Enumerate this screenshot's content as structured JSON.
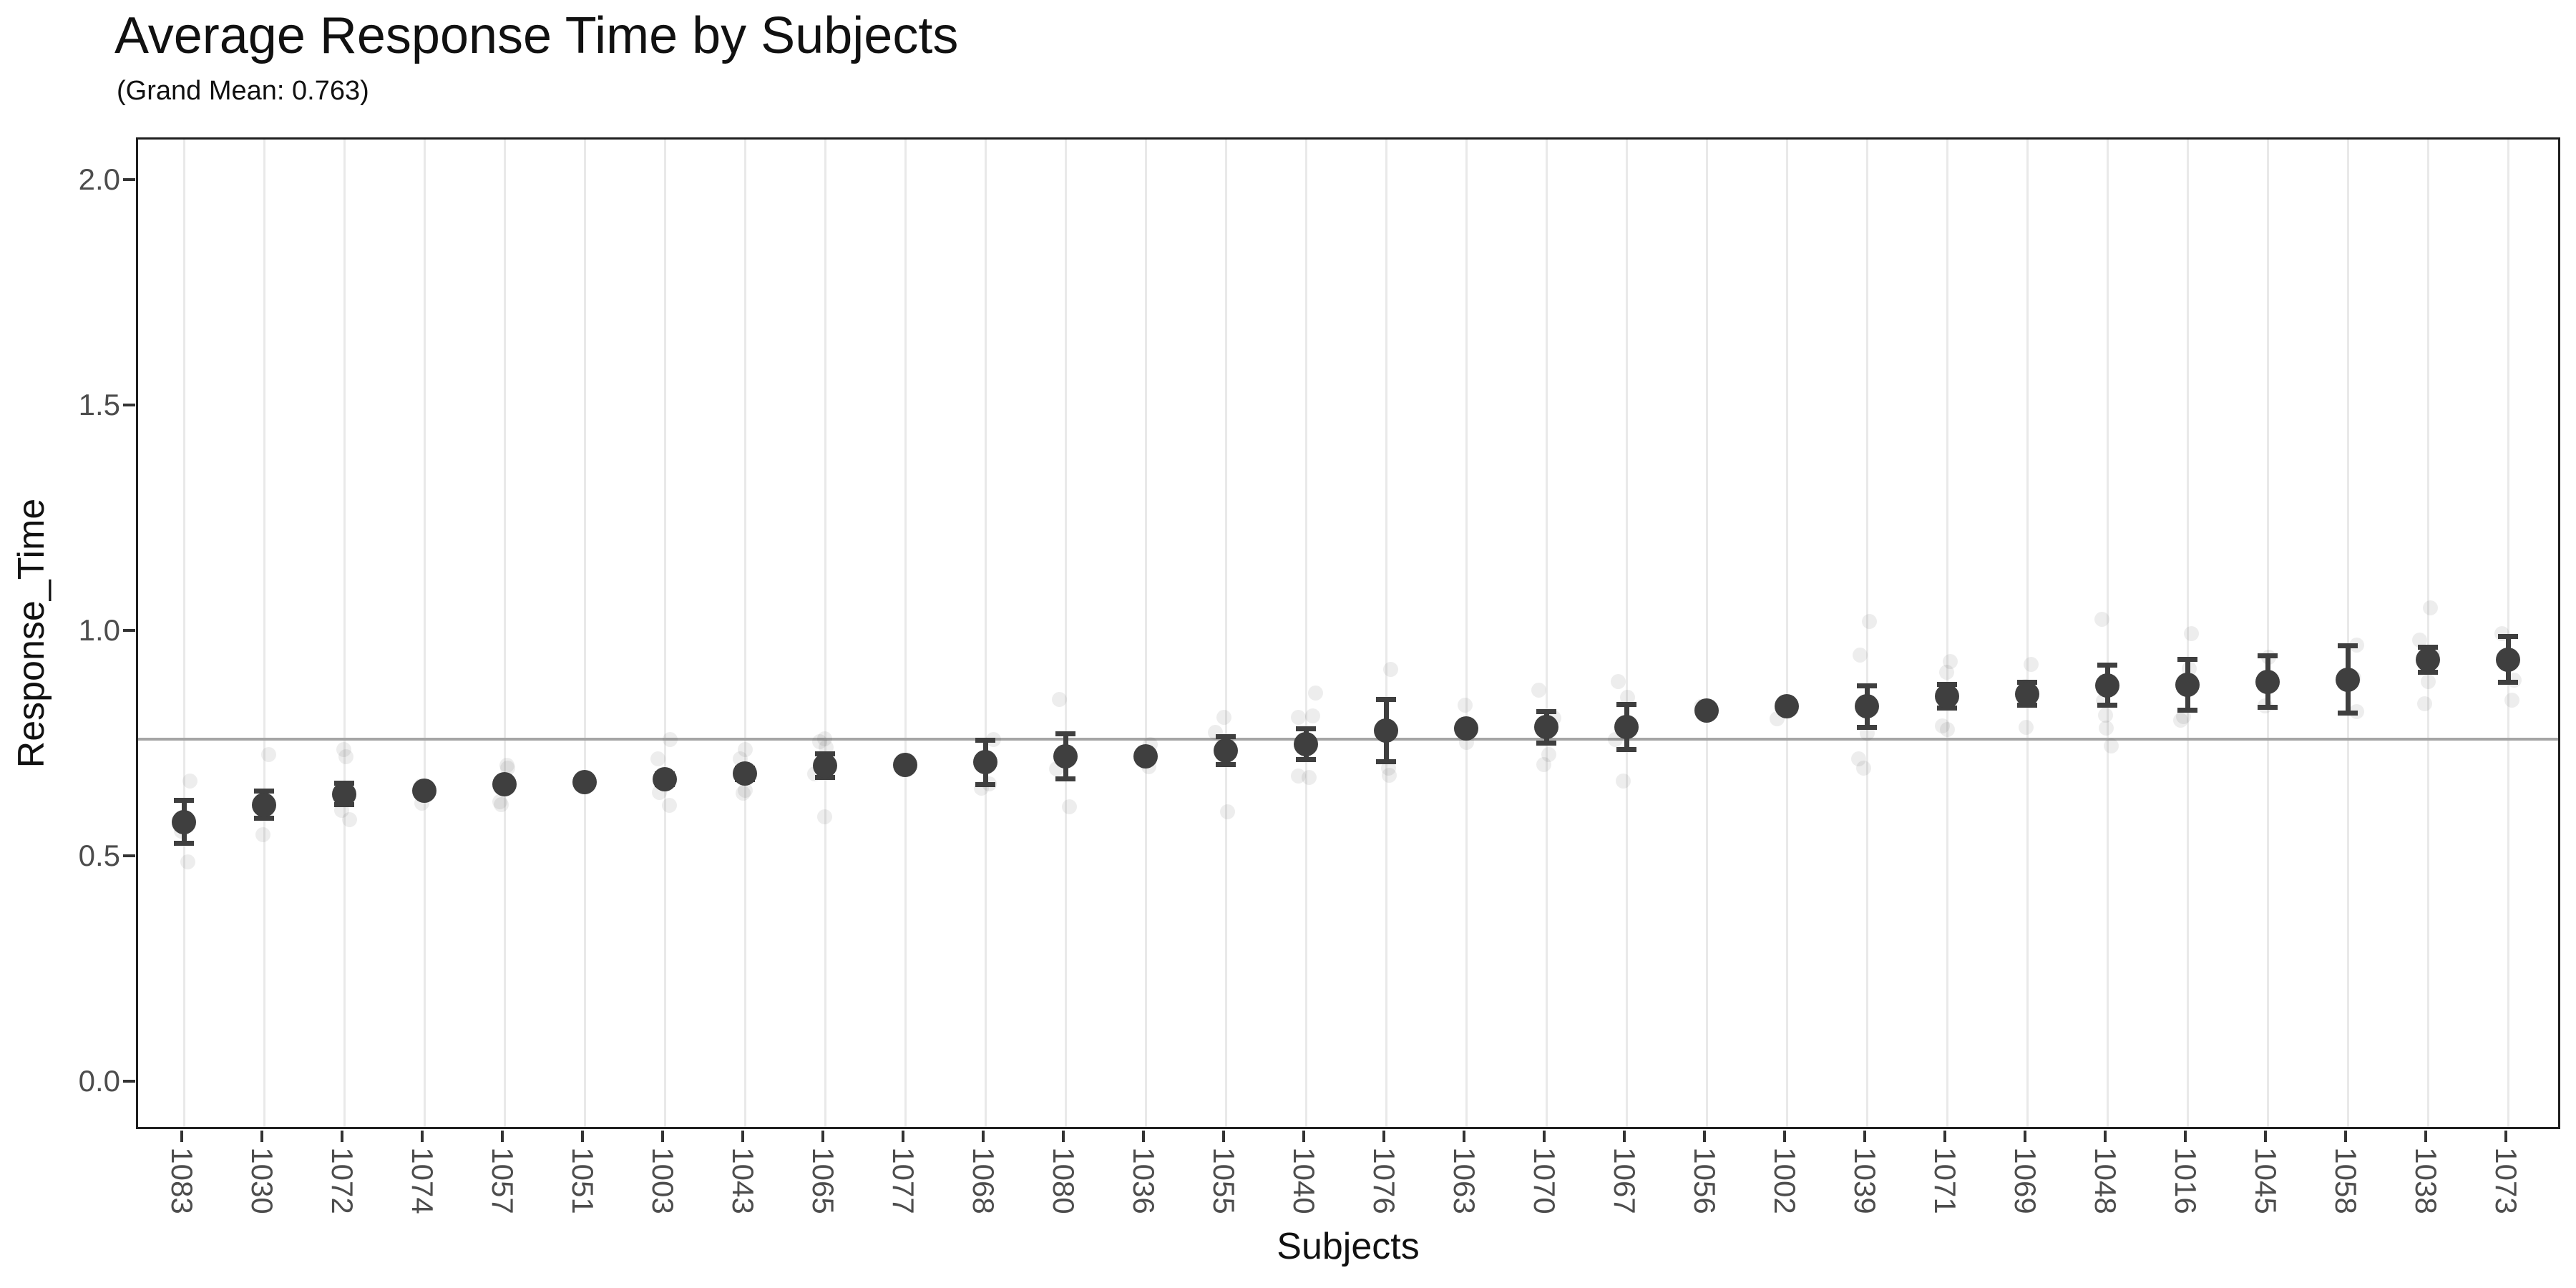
{
  "title": "Average Response Time by Subjects",
  "subtitle": "(Grand Mean: 0.763)",
  "colors": {
    "mean_point": "#3f3f3f",
    "error_bar": "#3f3f3f",
    "raw_point": "#505050",
    "raw_point_opacity": 0.1,
    "grand_mean_line": "#a5a5a5",
    "gridline": "#e9e9e9",
    "panel_border": "#1f1f1f",
    "tick_text": "#4d4d4d",
    "tick_mark": "#333333"
  },
  "chart_data": {
    "type": "scatter",
    "title": "Average Response Time by Subjects",
    "subtitle": "(Grand Mean: 0.763)",
    "xlabel": "Subjects",
    "ylabel": "Response_Time",
    "ylim": [
      0,
      2
    ],
    "yticks": [
      0.0,
      0.5,
      1.0,
      1.5,
      2.0
    ],
    "ytick_labels": [
      "0.0",
      "0.5",
      "1.0",
      "1.5",
      "2.0"
    ],
    "grand_mean": 0.763,
    "grid": "vertical-only",
    "legend": "none",
    "series_note": "mean = subject average (dark point), se = half-length of error bar, raw = [x-jitter-px, value] individual observations (faint points)",
    "subjects": [
      {
        "id": "1083",
        "mean": 0.58,
        "se": 0.048,
        "raw": [
          [
            8,
            0.67
          ],
          [
            2,
            0.585
          ],
          [
            -4,
            0.56
          ],
          [
            5,
            0.492
          ]
        ]
      },
      {
        "id": "1030",
        "mean": 0.618,
        "se": 0.03,
        "raw": [
          [
            6,
            0.729
          ],
          [
            -3,
            0.62
          ],
          [
            3,
            0.604
          ],
          [
            -2,
            0.551
          ]
        ]
      },
      {
        "id": "1072",
        "mean": 0.642,
        "se": 0.024,
        "raw": [
          [
            -1,
            0.741
          ],
          [
            2,
            0.725
          ],
          [
            -4,
            0.606
          ],
          [
            7,
            0.585
          ]
        ]
      },
      {
        "id": "1074",
        "mean": 0.649,
        "se": 0.008,
        "raw": [
          [
            -5,
            0.66
          ],
          [
            3,
            0.652
          ],
          [
            -4,
            0.622
          ]
        ]
      },
      {
        "id": "1057",
        "mean": 0.663,
        "se": 0.009,
        "raw": [
          [
            3,
            0.706
          ],
          [
            4,
            0.7
          ],
          [
            -7,
            0.625
          ],
          [
            -5,
            0.618
          ]
        ]
      },
      {
        "id": "1051",
        "mean": 0.668,
        "se": 0.007,
        "raw": [
          [
            2,
            0.676
          ],
          [
            -3,
            0.668
          ],
          [
            1,
            0.66
          ]
        ]
      },
      {
        "id": "1003",
        "mean": 0.674,
        "se": 0.012,
        "raw": [
          [
            7,
            0.763
          ],
          [
            -10,
            0.72
          ],
          [
            -8,
            0.645
          ],
          [
            6,
            0.616
          ]
        ]
      },
      {
        "id": "1043",
        "mean": 0.687,
        "se": 0.013,
        "raw": [
          [
            0,
            0.74
          ],
          [
            -7,
            0.72
          ],
          [
            0,
            0.65
          ],
          [
            -3,
            0.643
          ]
        ]
      },
      {
        "id": "1065",
        "mean": 0.705,
        "se": 0.026,
        "raw": [
          [
            -1,
            0.764
          ],
          [
            -8,
            0.758
          ],
          [
            1,
            0.746
          ],
          [
            -15,
            0.687
          ],
          [
            -1,
            0.592
          ]
        ]
      },
      {
        "id": "1077",
        "mean": 0.706,
        "se": 0.008,
        "raw": [
          [
            2,
            0.712
          ],
          [
            -2,
            0.706
          ],
          [
            1,
            0.7
          ]
        ]
      },
      {
        "id": "1068",
        "mean": 0.712,
        "se": 0.049,
        "raw": [
          [
            11,
            0.763
          ],
          [
            3,
            0.72
          ],
          [
            5,
            0.664
          ],
          [
            -6,
            0.655
          ]
        ]
      },
      {
        "id": "1080",
        "mean": 0.725,
        "se": 0.05,
        "raw": [
          [
            -9,
            0.852
          ],
          [
            -13,
            0.697
          ],
          [
            5,
            0.613
          ]
        ]
      },
      {
        "id": "1036",
        "mean": 0.725,
        "se": 0.006,
        "raw": [
          [
            6,
            0.751
          ],
          [
            -2,
            0.726
          ],
          [
            4,
            0.703
          ]
        ]
      },
      {
        "id": "1055",
        "mean": 0.738,
        "se": 0.031,
        "raw": [
          [
            -3,
            0.812
          ],
          [
            -15,
            0.778
          ],
          [
            2,
            0.74
          ],
          [
            2,
            0.602
          ]
        ]
      },
      {
        "id": "1040",
        "mean": 0.753,
        "se": 0.034,
        "raw": [
          [
            13,
            0.866
          ],
          [
            9,
            0.815
          ],
          [
            -11,
            0.812
          ],
          [
            -11,
            0.682
          ],
          [
            4,
            0.679
          ]
        ]
      },
      {
        "id": "1076",
        "mean": 0.783,
        "se": 0.069,
        "raw": [
          [
            6,
            0.919
          ],
          [
            -2,
            0.78
          ],
          [
            3,
            0.7
          ],
          [
            4,
            0.684
          ]
        ]
      },
      {
        "id": "1063",
        "mean": 0.787,
        "se": 0.007,
        "raw": [
          [
            -2,
            0.839
          ],
          [
            0,
            0.79
          ],
          [
            0,
            0.757
          ]
        ]
      },
      {
        "id": "1070",
        "mean": 0.79,
        "se": 0.035,
        "raw": [
          [
            -11,
            0.872
          ],
          [
            10,
            0.81
          ],
          [
            3,
            0.73
          ],
          [
            -4,
            0.707
          ]
        ]
      },
      {
        "id": "1067",
        "mean": 0.791,
        "se": 0.05,
        "raw": [
          [
            -12,
            0.891
          ],
          [
            1,
            0.857
          ],
          [
            -16,
            0.763
          ],
          [
            -5,
            0.67
          ]
        ]
      },
      {
        "id": "1056",
        "mean": 0.827,
        "se": 0.006,
        "raw": [
          [
            -8,
            0.836
          ],
          [
            2,
            0.83
          ],
          [
            -2,
            0.82
          ]
        ]
      },
      {
        "id": "1002",
        "mean": 0.836,
        "se": 0.006,
        "raw": [
          [
            2,
            0.84
          ],
          [
            1,
            0.832
          ],
          [
            -14,
            0.809
          ]
        ]
      },
      {
        "id": "1039",
        "mean": 0.836,
        "se": 0.046,
        "raw": [
          [
            3,
            1.025
          ],
          [
            -10,
            0.95
          ],
          [
            0,
            0.777
          ],
          [
            -12,
            0.72
          ],
          [
            -5,
            0.7
          ]
        ]
      },
      {
        "id": "1071",
        "mean": 0.859,
        "se": 0.026,
        "raw": [
          [
            4,
            0.935
          ],
          [
            -1,
            0.912
          ],
          [
            -7,
            0.793
          ],
          [
            0,
            0.785
          ]
        ]
      },
      {
        "id": "1069",
        "mean": 0.864,
        "se": 0.025,
        "raw": [
          [
            5,
            0.93
          ],
          [
            -3,
            0.88
          ],
          [
            2,
            0.86
          ],
          [
            -2,
            0.79
          ]
        ]
      },
      {
        "id": "1048",
        "mean": 0.883,
        "se": 0.044,
        "raw": [
          [
            -8,
            1.03
          ],
          [
            -6,
            0.848
          ],
          [
            -3,
            0.817
          ],
          [
            -2,
            0.788
          ],
          [
            5,
            0.748
          ]
        ]
      },
      {
        "id": "1016",
        "mean": 0.884,
        "se": 0.056,
        "raw": [
          [
            5,
            0.997
          ],
          [
            2,
            0.92
          ],
          [
            -6,
            0.814
          ],
          [
            -10,
            0.806
          ]
        ]
      },
      {
        "id": "1045",
        "mean": 0.891,
        "se": 0.057,
        "raw": [
          [
            1,
            0.945
          ],
          [
            -3,
            0.89
          ],
          [
            -4,
            0.837
          ]
        ]
      },
      {
        "id": "1058",
        "mean": 0.896,
        "se": 0.074,
        "raw": [
          [
            12,
            0.973
          ],
          [
            8,
            0.9
          ],
          [
            12,
            0.825
          ]
        ]
      },
      {
        "id": "1038",
        "mean": 0.94,
        "se": 0.028,
        "raw": [
          [
            3,
            1.054
          ],
          [
            -12,
            0.984
          ],
          [
            6,
            0.954
          ],
          [
            0,
            0.891
          ],
          [
            -5,
            0.842
          ]
        ]
      },
      {
        "id": "1073",
        "mean": 0.94,
        "se": 0.051,
        "raw": [
          [
            -9,
            0.997
          ],
          [
            2,
            0.94
          ],
          [
            8,
            0.894
          ],
          [
            5,
            0.85
          ]
        ]
      }
    ]
  }
}
